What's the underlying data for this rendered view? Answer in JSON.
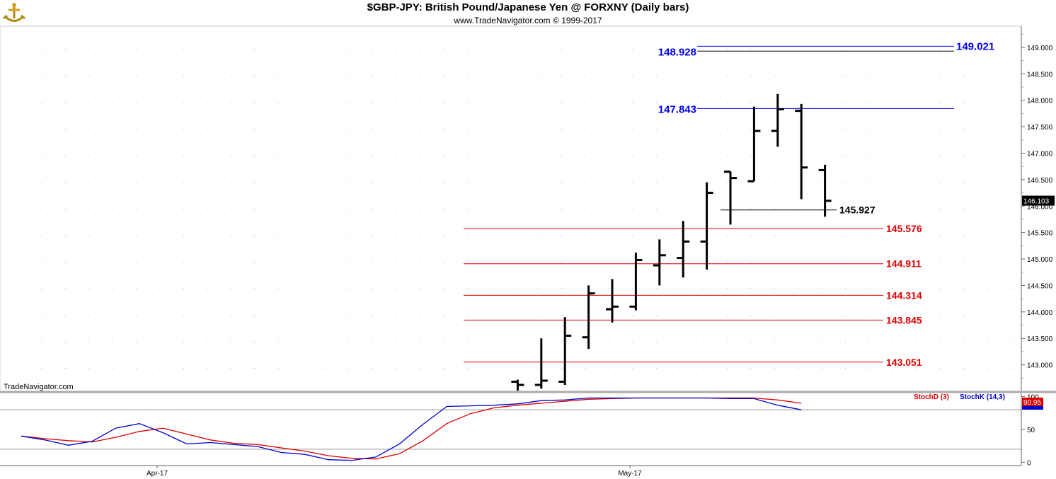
{
  "header": {
    "title": "$GBP-JPY:  British Pound/Japanese Yen @ FORXNY  (Daily bars)",
    "subtitle": "www.TradeNavigator.com © 1999-2017"
  },
  "watermark": "TradeNavigator.com",
  "colors": {
    "bars": "#000000",
    "extension_levels": "#0000ee",
    "retracement_levels": "#dd0000",
    "stochK": "#0000cc",
    "stochD": "#dd0000",
    "panel_line": "#999999",
    "last_price_bg": "#000000",
    "stoch_value_bg": "#dd0000"
  },
  "chart_data": [
    {
      "type": "ohlc",
      "title": "$GBP-JPY:  British Pound/Japanese Yen @ FORXNY  (Daily bars)",
      "ylim": [
        142.5,
        149.4
      ],
      "y_ticks": [
        "143.000",
        "143.500",
        "144.000",
        "144.500",
        "145.000",
        "145.500",
        "146.000",
        "146.500",
        "147.000",
        "147.500",
        "148.000",
        "148.500",
        "149.000"
      ],
      "y_tick_values": [
        143,
        143.5,
        144,
        144.5,
        145,
        145.5,
        146,
        146.5,
        147,
        147.5,
        148,
        148.5,
        149
      ],
      "x_labels": [
        {
          "label": "Apr-17",
          "index": 5
        },
        {
          "label": "May-17",
          "index": 25
        }
      ],
      "bars_start_index": 21,
      "bars": [
        {
          "o": 142.68,
          "h": 142.72,
          "l": 142.4,
          "c": 142.62
        },
        {
          "o": 142.62,
          "h": 143.5,
          "l": 142.55,
          "c": 142.7
        },
        {
          "o": 142.68,
          "h": 143.9,
          "l": 142.62,
          "c": 143.55
        },
        {
          "o": 143.52,
          "h": 144.5,
          "l": 143.3,
          "c": 144.35
        },
        {
          "o": 144.05,
          "h": 144.62,
          "l": 143.8,
          "c": 144.1
        },
        {
          "o": 144.1,
          "h": 145.12,
          "l": 144.03,
          "c": 144.98
        },
        {
          "o": 144.88,
          "h": 145.37,
          "l": 144.5,
          "c": 145.07
        },
        {
          "o": 145.02,
          "h": 145.72,
          "l": 144.65,
          "c": 145.33
        },
        {
          "o": 145.33,
          "h": 146.45,
          "l": 144.8,
          "c": 146.25
        },
        {
          "o": 146.65,
          "h": 146.65,
          "l": 145.65,
          "c": 146.53
        },
        {
          "o": 146.47,
          "h": 147.88,
          "l": 146.47,
          "c": 147.42
        },
        {
          "o": 147.42,
          "h": 148.12,
          "l": 147.12,
          "c": 147.83
        },
        {
          "o": 147.8,
          "h": 147.93,
          "l": 146.13,
          "c": 146.73
        },
        {
          "o": 146.68,
          "h": 146.78,
          "l": 145.8,
          "c": 146.1
        }
      ],
      "extension_levels": [
        {
          "value": 149.021,
          "label": "149.021",
          "label_side": "right"
        },
        {
          "value": 148.928,
          "label": "148.928",
          "label_side": "left"
        },
        {
          "value": 147.843,
          "label": "147.843",
          "label_side": "left"
        }
      ],
      "retracement_levels": [
        {
          "value": 145.576,
          "label": "145.576"
        },
        {
          "value": 144.911,
          "label": "144.911"
        },
        {
          "value": 144.314,
          "label": "144.314"
        },
        {
          "value": 143.845,
          "label": "143.845"
        },
        {
          "value": 143.051,
          "label": "143.051"
        }
      ],
      "low_marker": {
        "value": 145.927,
        "label": "145.927"
      },
      "last_price": {
        "value": 146.103,
        "label": "146.103"
      }
    },
    {
      "type": "line",
      "ylim": [
        -5,
        105
      ],
      "y_ticks": [
        "100",
        "50",
        "0"
      ],
      "y_tick_values": [
        100,
        50,
        0
      ],
      "reference_lines": [
        80,
        20
      ],
      "legend": [
        {
          "name": "StochD (3)",
          "color": "#dd0000"
        },
        {
          "name": "StochK (14,3)",
          "color": "#0000cc"
        }
      ],
      "last_value_label": "90.95",
      "series": [
        {
          "name": "StochK (14,3)",
          "values": [
            40,
            34,
            26,
            32,
            52,
            59,
            45,
            28,
            30,
            27,
            24,
            15,
            12,
            4,
            3,
            8,
            28,
            58,
            85,
            86,
            87,
            89,
            94,
            95,
            98,
            98,
            98,
            98,
            98,
            98,
            97,
            97,
            87,
            80
          ]
        },
        {
          "name": "StochD (3)",
          "values": [
            40,
            36,
            33,
            31,
            38,
            47,
            52,
            43,
            34,
            29,
            27,
            22,
            17,
            10,
            6,
            5,
            13,
            33,
            59,
            74,
            83,
            87,
            90,
            93,
            96,
            97,
            98,
            98,
            98,
            98,
            98,
            98,
            95,
            90
          ]
        }
      ]
    }
  ]
}
